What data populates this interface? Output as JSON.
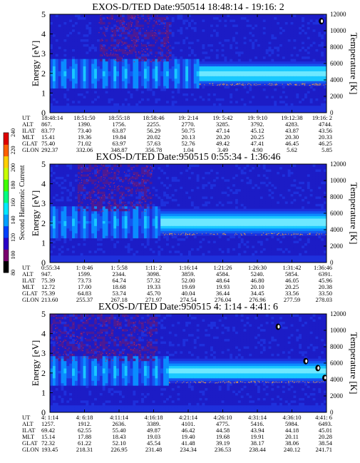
{
  "chart_data": [
    {
      "type": "heatmap",
      "title": "EXOS-D/TED   Date:950514  18:48:14 - 19:16: 2",
      "ylabel": "Energy [eV]",
      "ylabel_right": "Temperature [K]",
      "ylim": [
        0,
        5
      ],
      "ylim_right": [
        0,
        12000
      ],
      "y_ticks": [
        "0",
        "1",
        "2",
        "3",
        "4",
        "5"
      ],
      "y_ticks_right": [
        "0",
        "2000",
        "4000",
        "6000",
        "8000",
        "10000",
        "12000"
      ],
      "ephemeris": {
        "labels": [
          "UT",
          "ALT",
          "ILAT",
          "MLT",
          "GLAT",
          "GLON"
        ],
        "columns": [
          [
            "18:48:14",
            "867.",
            "83.77",
            "15.41",
            "75.40",
            "292.37"
          ],
          [
            "18:51:50",
            "1390.",
            "73.40",
            "19.36",
            "71.02",
            "332.06"
          ],
          [
            "18:55:18",
            "1756.",
            "63.87",
            "19.84",
            "63.97",
            "348.87"
          ],
          [
            "18:58:46",
            "2255.",
            "56.29",
            "20.02",
            "57.63",
            "356.78"
          ],
          [
            "19: 2:14",
            "2770.",
            "50.75",
            "20.13",
            "52.76",
            "1.04"
          ],
          [
            "19: 5:42",
            "3285.",
            "47.14",
            "20.20",
            "49.42",
            "3.49"
          ],
          [
            "19: 9:10",
            "3792.",
            "45.12",
            "20.25",
            "47.41",
            "4.90"
          ],
          [
            "19:12:38",
            "4283.",
            "43.87",
            "20.30",
            "46.45",
            "5.62"
          ],
          [
            "19:16: 2",
            "4744.",
            "43.56",
            "20.33",
            "46.25",
            "5.85"
          ]
        ]
      },
      "features": {
        "band_center_ev": 2.0,
        "band_halfwidth_ev": 0.55,
        "band_shift_ut_index": 4.3,
        "noise_rise_ut_index": 1.4,
        "noise_end_ut_index": 3.5,
        "hot_spots": [
          {
            "ut_index": 7.85,
            "energy_ev": 4.65
          }
        ]
      }
    },
    {
      "type": "heatmap",
      "title": "EXOS-D/TED   Date:950515   0:55:34 - 1:36:46",
      "ylabel": "Energy [eV]",
      "ylabel_right": "Temperature [K]",
      "ylim": [
        0,
        5
      ],
      "ylim_right": [
        0,
        12000
      ],
      "y_ticks": [
        "0",
        "1",
        "2",
        "3",
        "4",
        "5"
      ],
      "y_ticks_right": [
        "0",
        "2000",
        "4000",
        "6000",
        "8000",
        "10000",
        "12000"
      ],
      "ephemeris": {
        "labels": [
          "UT",
          "ALT",
          "ILAT",
          "MLT",
          "GLAT",
          "GLON"
        ],
        "columns": [
          [
            "0:55:34",
            "947.",
            "75.39",
            "12.72",
            "75.39",
            "213.60"
          ],
          [
            "1: 0:46",
            "1599.",
            "73.73",
            "17.00",
            "64.83",
            "255.37"
          ],
          [
            "1: 5:58",
            "2344.",
            "64.74",
            "18.68",
            "53.74",
            "267.18"
          ],
          [
            "1:11: 2",
            "3098.",
            "57.32",
            "19.33",
            "45.70",
            "271.97"
          ],
          [
            "1:16:14",
            "3859.",
            "52.00",
            "19.69",
            "40.04",
            "274.54"
          ],
          [
            "1:21:26",
            "4584.",
            "48.64",
            "19.93",
            "36.44",
            "276.04"
          ],
          [
            "1:26:30",
            "5240.",
            "46.80",
            "20.10",
            "34.45",
            "276.96"
          ],
          [
            "1:31:42",
            "5854.",
            "46.05",
            "20.25",
            "33.56",
            "277.59"
          ],
          [
            "1:36:46",
            "6391.",
            "45.96",
            "20.38",
            "33.50",
            "278.03"
          ]
        ]
      },
      "features": {
        "band_center_ev": 2.05,
        "band_halfwidth_ev": 0.6,
        "band_shift_ut_index": 3.2,
        "noise_rise_ut_index": 0.8,
        "noise_end_ut_index": 3.0,
        "hot_spots": []
      }
    },
    {
      "type": "heatmap",
      "title": "EXOS-D/TED   Date:950515   4: 1:14 - 4:41: 6",
      "ylabel": "Energy [eV]",
      "ylabel_right": "Temperature [K]",
      "ylim": [
        0,
        5
      ],
      "ylim_right": [
        0,
        12000
      ],
      "y_ticks": [
        "0",
        "1",
        "2",
        "3",
        "4",
        "5"
      ],
      "y_ticks_right": [
        "0",
        "2000",
        "4000",
        "6000",
        "8000",
        "10000",
        "12000"
      ],
      "ephemeris": {
        "labels": [
          "UT",
          "ALT",
          "ILAT",
          "MLT",
          "GLAT",
          "GLON"
        ],
        "columns": [
          [
            "4: 1:14",
            "1257.",
            "69.42",
            "15.14",
            "72.32",
            "193.45"
          ],
          [
            "4: 6:18",
            "1912.",
            "62.55",
            "17.88",
            "61.22",
            "218.31"
          ],
          [
            "4:11:14",
            "2636.",
            "55.40",
            "18.43",
            "52.10",
            "226.95"
          ],
          [
            "4:16:18",
            "3389.",
            "49.87",
            "19.03",
            "45.54",
            "231.48"
          ],
          [
            "4:21:14",
            "4101.",
            "46.42",
            "19.40",
            "41.48",
            "234.34"
          ],
          [
            "4:26:10",
            "4775.",
            "44.58",
            "19.68",
            "39.19",
            "236.53"
          ],
          [
            "4:31:14",
            "5416.",
            "43.94",
            "19.91",
            "38.17",
            "238.44"
          ],
          [
            "4:36:10",
            "5984.",
            "44.18",
            "20.11",
            "38.06",
            "240.12"
          ],
          [
            "4:41: 6",
            "6493.",
            "45.01",
            "20.28",
            "38.54",
            "241.71"
          ]
        ]
      },
      "features": {
        "band_center_ev": 2.1,
        "band_halfwidth_ev": 0.55,
        "band_shift_ut_index": 3.4,
        "noise_rise_ut_index": 0.0,
        "noise_end_ut_index": 3.1,
        "hot_spots": [
          {
            "ut_index": 6.6,
            "energy_ev": 4.35
          },
          {
            "ut_index": 7.4,
            "energy_ev": 2.6
          },
          {
            "ut_index": 7.75,
            "energy_ev": 2.25
          },
          {
            "ut_index": 7.95,
            "energy_ev": 1.75
          }
        ]
      }
    }
  ],
  "colorbar": {
    "label": "Second Harmonic Current",
    "ticks": [
      "80",
      "100",
      "120",
      "140",
      "160",
      "180",
      "200",
      "220",
      "240"
    ],
    "range": [
      80,
      240
    ],
    "colors": [
      "#000000",
      "#7a006e",
      "#2a00c8",
      "#0040ff",
      "#00a0ff",
      "#00e8ff",
      "#00ff80",
      "#40ff00",
      "#c8ff00",
      "#ffd000",
      "#ff6000",
      "#e00000"
    ]
  }
}
